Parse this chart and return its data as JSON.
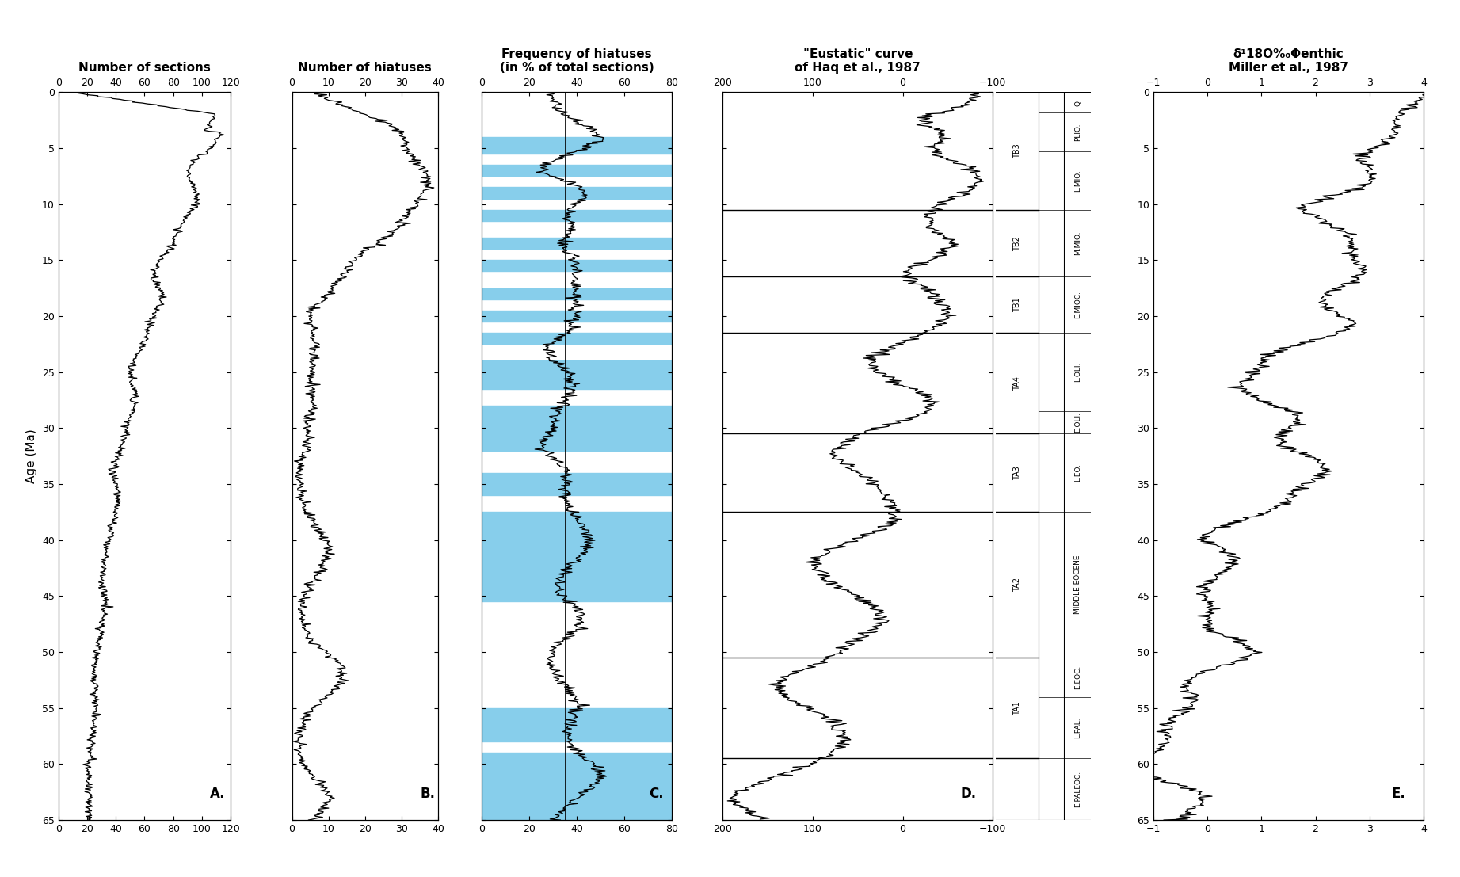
{
  "age_min": 0,
  "age_max": 65,
  "yticks": [
    0,
    5,
    10,
    15,
    20,
    25,
    30,
    35,
    40,
    45,
    50,
    55,
    60,
    65
  ],
  "panel_A": {
    "title": "Number of sections",
    "xlim": [
      0,
      120
    ],
    "xticks": [
      0,
      20,
      40,
      60,
      80,
      100,
      120
    ]
  },
  "panel_B": {
    "title": "Number of hiatuses",
    "xlim": [
      0,
      40
    ],
    "xticks": [
      0,
      10,
      20,
      30,
      40
    ]
  },
  "panel_C": {
    "title": "Frequency of hiatuses\n(in % of total sections)",
    "xlim": [
      0,
      80
    ],
    "xticks": [
      0,
      20,
      40,
      60,
      80
    ],
    "center_line_x": 35,
    "hiatus_bands": [
      [
        4.0,
        5.5
      ],
      [
        6.5,
        7.5
      ],
      [
        8.5,
        9.5
      ],
      [
        10.5,
        11.5
      ],
      [
        13.0,
        14.0
      ],
      [
        15.0,
        16.0
      ],
      [
        17.5,
        18.5
      ],
      [
        19.5,
        20.5
      ],
      [
        21.5,
        22.5
      ],
      [
        24.0,
        26.5
      ],
      [
        28.0,
        32.0
      ],
      [
        34.0,
        36.0
      ],
      [
        37.5,
        45.5
      ],
      [
        55.0,
        58.0
      ],
      [
        59.0,
        65.0
      ]
    ]
  },
  "panel_D": {
    "title": "\"Eustatic\" curve\nof Haq et al., 1987",
    "xlim": [
      200,
      -100
    ],
    "xticks": [
      200,
      100,
      0,
      -100
    ],
    "tb_lines": [
      {
        "label": "TB3",
        "age": 10.5
      },
      {
        "label": "TB2",
        "age": 16.5
      },
      {
        "label": "TB1",
        "age": 21.5
      },
      {
        "label": "TA4",
        "age": 30.5
      },
      {
        "label": "TA3",
        "age": 37.5
      },
      {
        "label": "TA2",
        "age": 50.5
      },
      {
        "label": "TA1",
        "age": 59.5
      }
    ],
    "epochs": [
      {
        "label": "Q.",
        "start": 0.0,
        "end": 1.8
      },
      {
        "label": "PLIO.",
        "start": 1.8,
        "end": 5.3
      },
      {
        "label": "L.MIO.",
        "start": 5.3,
        "end": 10.5
      },
      {
        "label": "M.MIO.",
        "start": 10.5,
        "end": 16.5
      },
      {
        "label": "E.MIOC.",
        "start": 16.5,
        "end": 21.5
      },
      {
        "label": "L.OLI.",
        "start": 21.5,
        "end": 28.5
      },
      {
        "label": "E.OLI.",
        "start": 28.5,
        "end": 30.5
      },
      {
        "label": "L.EO.",
        "start": 30.5,
        "end": 37.5
      },
      {
        "label": "MIDDLE EOCENE",
        "start": 37.5,
        "end": 50.5
      },
      {
        "label": "E.EOC.",
        "start": 50.5,
        "end": 54.0
      },
      {
        "label": "L.PAL.",
        "start": 54.0,
        "end": 59.5
      },
      {
        "label": "E.PALEOC.",
        "start": 59.5,
        "end": 65.0
      }
    ]
  },
  "panel_E": {
    "title": "δ¹18O‰Φenthic\nMiller et al., 1987",
    "xlim": [
      -1,
      4
    ],
    "xticks": [
      -1,
      0,
      1,
      2,
      3,
      4
    ]
  },
  "background_color": "#ffffff",
  "line_color": "#000000",
  "hiatus_color": "#87CEEB"
}
